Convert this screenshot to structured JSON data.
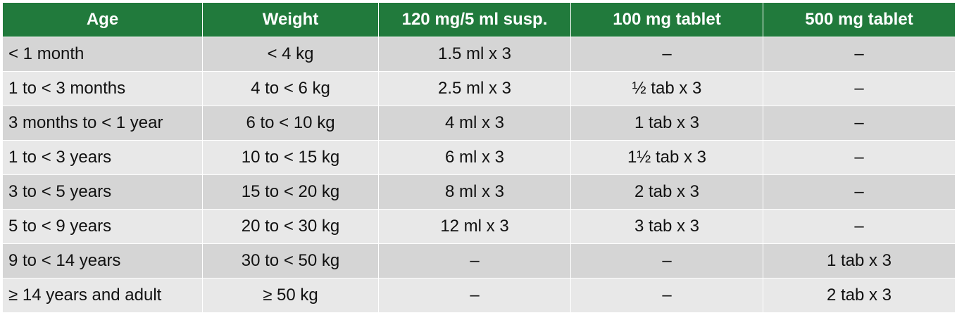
{
  "table": {
    "columns": [
      "Age",
      "Weight",
      "120 mg/5 ml susp.",
      "100 mg tablet",
      "500 mg tablet"
    ],
    "rows": [
      [
        "< 1 month",
        "< 4 kg",
        "1.5 ml x 3",
        "–",
        "–"
      ],
      [
        "1 to < 3 months",
        "4 to < 6 kg",
        "2.5 ml x 3",
        "½ tab x 3",
        "–"
      ],
      [
        "3 months to < 1 year",
        "6 to < 10 kg",
        "4 ml x 3",
        "1 tab x 3",
        "–"
      ],
      [
        "1 to < 3 years",
        "10 to < 15 kg",
        "6 ml x 3",
        "1½ tab x 3",
        "–"
      ],
      [
        "3 to < 5 years",
        "15 to < 20 kg",
        "8 ml x 3",
        "2 tab x 3",
        "–"
      ],
      [
        "5 to < 9 years",
        "20 to < 30 kg",
        "12 ml x 3",
        "3 tab x 3",
        "–"
      ],
      [
        "9 to < 14 years",
        "30 to < 50 kg",
        "–",
        "–",
        "1 tab x 3"
      ],
      [
        "≥ 14 years and adult",
        "≥ 50 kg",
        "–",
        "–",
        "2 tab x 3"
      ]
    ]
  }
}
